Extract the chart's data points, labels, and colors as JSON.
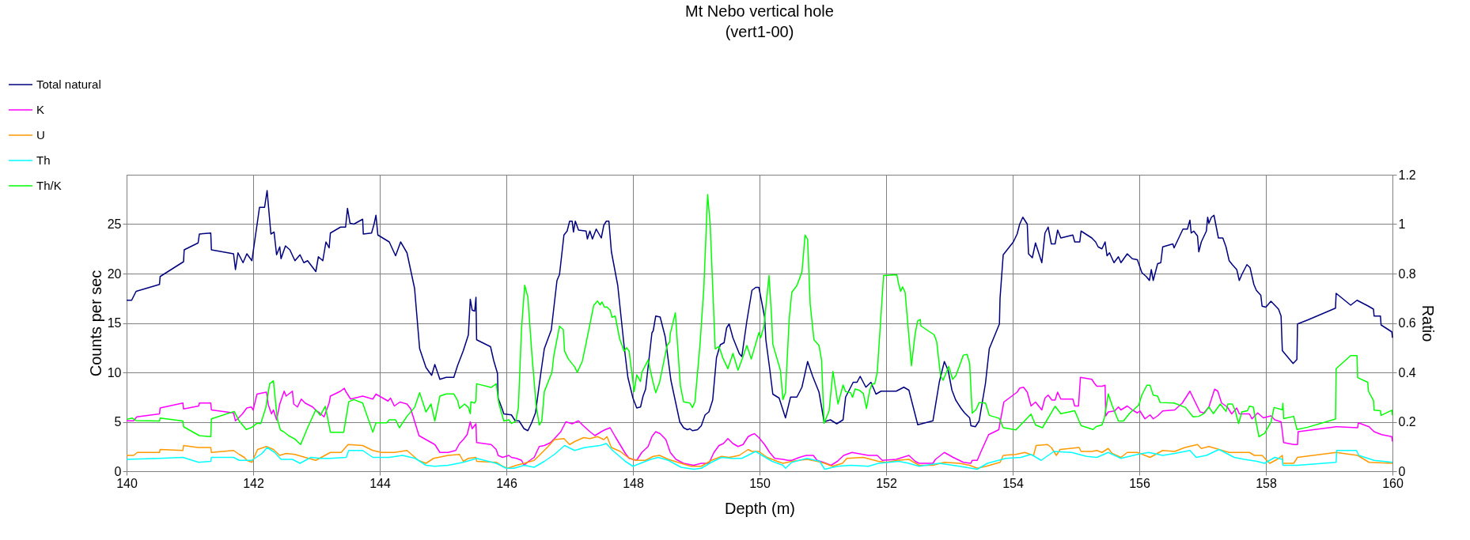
{
  "chart_data": {
    "type": "line",
    "title": "Mt Nebo vertical hole",
    "subtitle": "(vert1-00)",
    "xlabel": "Depth (m)",
    "ylabel": "Counts per sec",
    "y2label": "Ratio",
    "xlim": [
      140,
      160
    ],
    "xticks": [
      140,
      142,
      144,
      146,
      148,
      150,
      152,
      154,
      156,
      158,
      160
    ],
    "ylim": [
      0,
      30
    ],
    "yticks": [
      0,
      5,
      10,
      15,
      20,
      25
    ],
    "y2lim": [
      0,
      1.2
    ],
    "y2ticks": [
      0,
      0.2,
      0.4,
      0.6,
      0.8,
      1,
      1.2
    ],
    "grid": true,
    "legend": "top left",
    "marker": "none",
    "line_style": "solid",
    "series": [
      {
        "name": "Total natural",
        "color": "#000080",
        "x": [
          140,
          140.08,
          140.15,
          140.52,
          140.53,
          140.9,
          140.91,
          141.13,
          141.15,
          141.33,
          141.34,
          141.69,
          141.72,
          141.76,
          141.84,
          141.9,
          141.98,
          142.1,
          142.18,
          142.22,
          142.28,
          142.33,
          142.37,
          142.42,
          142.44,
          142.51,
          142.58,
          142.66,
          142.74,
          142.8,
          142.86,
          142.99,
          143.03,
          143.1,
          143.15,
          143.2,
          143.22,
          143.38,
          143.46,
          143.49,
          143.53,
          143.59,
          143.73,
          143.74,
          143.87,
          143.91,
          143.94,
          143.97,
          144.15,
          144.25,
          144.33,
          144.43,
          144.55,
          144.63,
          144.73,
          144.82,
          144.87,
          144.95,
          145.05,
          145.17,
          145.23,
          145.32,
          145.4,
          145.43,
          145.46,
          145.5,
          145.52,
          145.53,
          145.75,
          145.8,
          145.86,
          145.87,
          145.94,
          145.96,
          146.08,
          146.14,
          146.2,
          146.28,
          146.34,
          146.4,
          146.46,
          146.54,
          146.6,
          146.71,
          146.8,
          146.84,
          146.91,
          146.96,
          147,
          147.04,
          147.06,
          147.09,
          147.14,
          147.26,
          147.28,
          147.32,
          147.36,
          147.42,
          147.5,
          147.54,
          147.58,
          147.62,
          147.66,
          147.76,
          147.86,
          147.92,
          148,
          148.06,
          148.12,
          148.16,
          148.2,
          148.3,
          148.32,
          148.36,
          148.43,
          148.51,
          148.6,
          148.74,
          148.8,
          148.86,
          148.9,
          148.94,
          149.02,
          149.08,
          149.14,
          149.2,
          149.26,
          149.32,
          149.38,
          149.44,
          149.48,
          149.52,
          149.58,
          149.68,
          149.72,
          149.8,
          149.88,
          149.94,
          149.99,
          150.08,
          150.1,
          150.16,
          150.21,
          150.31,
          150.35,
          150.41,
          150.49,
          150.59,
          150.67,
          150.76,
          150.84,
          150.94,
          151.02,
          151.12,
          151.22,
          151.32,
          151.36,
          151.48,
          151.54,
          151.59,
          151.68,
          151.76,
          151.84,
          151.92,
          152.16,
          152.28,
          152.36,
          152.42,
          152.5,
          152.74,
          152.84,
          152.92,
          152.98,
          153.04,
          153.1,
          153.18,
          153.24,
          153.32,
          153.34,
          153.41,
          153.47,
          153.57,
          153.63,
          153.79,
          153.8,
          153.85,
          154.01,
          154.07,
          154.11,
          154.16,
          154.23,
          154.25,
          154.31,
          154.36,
          154.46,
          154.51,
          154.56,
          154.61,
          154.67,
          154.71,
          154.76,
          154.95,
          154.98,
          155.06,
          155.08,
          155.25,
          155.31,
          155.35,
          155.41,
          155.46,
          155.49,
          155.53,
          155.6,
          155.67,
          155.71,
          155.81,
          155.89,
          155.97,
          156.04,
          156.11,
          156.16,
          156.19,
          156.22,
          156.29,
          156.34,
          156.37,
          156.53,
          156.55,
          156.69,
          156.76,
          156.8,
          156.82,
          156.86,
          156.92,
          156.94,
          156.98,
          157.06,
          157.08,
          157.1,
          157.14,
          157.18,
          157.25,
          157.32,
          157.37,
          157.42,
          157.47,
          157.54,
          157.58,
          157.62,
          157.7,
          157.75,
          157.81,
          157.85,
          157.92,
          157.94,
          158,
          158.08,
          158.14,
          158.2,
          158.24,
          158.26,
          158.43,
          158.49,
          158.5,
          158.66,
          159.1,
          159.11,
          159.34,
          159.44,
          159.62,
          159.7,
          159.71,
          159.81,
          159.82,
          159.99,
          160
        ],
        "values": [
          17.3,
          17.3,
          18.2,
          18.9,
          19.7,
          21.2,
          22.4,
          23.1,
          24.0,
          24.1,
          22.4,
          22.0,
          20.4,
          22.1,
          21.1,
          22.0,
          21.3,
          26.7,
          26.7,
          28.4,
          24.0,
          24.2,
          21.9,
          22.7,
          21.5,
          22.8,
          22.4,
          21.3,
          21.9,
          21.1,
          21.3,
          20.2,
          21.7,
          21.3,
          23.2,
          22.6,
          24.1,
          24.7,
          24.7,
          26.6,
          25.1,
          25.0,
          25.5,
          24.0,
          24.1,
          25.0,
          25.9,
          23.9,
          23.2,
          21.8,
          23.2,
          22.1,
          18.5,
          12.4,
          10.5,
          9.7,
          10.8,
          9.3,
          9.5,
          9.5,
          10.7,
          12.2,
          13.8,
          17.4,
          16.3,
          16.2,
          17.6,
          13.3,
          12.6,
          11.2,
          9.9,
          7.4,
          6.2,
          5.8,
          5.7,
          5.1,
          5.1,
          4.3,
          4.1,
          4.9,
          5.9,
          9.7,
          12.4,
          14.3,
          19.3,
          19.9,
          23.9,
          24.3,
          25.3,
          25.3,
          24.2,
          25.3,
          24.4,
          24.3,
          23.5,
          24.3,
          23.5,
          24.5,
          23.6,
          24.9,
          25.3,
          25.3,
          22.2,
          18.8,
          12.7,
          9.5,
          7.4,
          6.4,
          6.5,
          7.6,
          8.3,
          14.0,
          14.2,
          15.7,
          15.6,
          13.6,
          9.2,
          5.0,
          4.4,
          4.2,
          4.3,
          4.1,
          4.2,
          4.6,
          5.7,
          6.0,
          7.2,
          11.5,
          12.8,
          13.0,
          14.5,
          14.9,
          13.5,
          11.9,
          11.6,
          15.2,
          18.3,
          18.6,
          18.6,
          15.6,
          13.3,
          10.4,
          7.8,
          7.4,
          6.6,
          5.4,
          7.5,
          7.5,
          8.5,
          11.1,
          9.6,
          8.0,
          5.0,
          5.2,
          4.8,
          5.2,
          7.5,
          9.0,
          9.0,
          9.6,
          8.5,
          9.0,
          7.8,
          8.1,
          8.1,
          8.5,
          8.2,
          6.7,
          4.7,
          5.1,
          9.0,
          11.1,
          10.2,
          8.2,
          7.2,
          6.4,
          5.9,
          5.4,
          4.6,
          4.5,
          5.1,
          8.9,
          12.4,
          14.9,
          17.5,
          21.9,
          23.2,
          24.0,
          25.0,
          25.7,
          25.0,
          22.0,
          21.6,
          23.1,
          21.1,
          24.1,
          24.7,
          23.0,
          23.0,
          24.4,
          23.6,
          23.9,
          23.2,
          23.2,
          24.3,
          23.6,
          23.2,
          22.7,
          22.5,
          23.2,
          21.8,
          22.1,
          21.1,
          21.7,
          21.1,
          22.0,
          21.5,
          21.4,
          20.1,
          19.7,
          19.3,
          20.4,
          19.3,
          21.0,
          21.1,
          22.7,
          23.0,
          22.6,
          24.5,
          24.5,
          25.4,
          24.1,
          24.3,
          23.8,
          22.2,
          23.2,
          24.3,
          25.7,
          25.1,
          25.7,
          25.9,
          23.6,
          23.6,
          22.7,
          21.3,
          20.9,
          20.4,
          19.3,
          19.9,
          20.9,
          20.6,
          18.9,
          18.3,
          17.8,
          16.7,
          16.6,
          17.2,
          16.8,
          16.4,
          15.7,
          12.2,
          10.9,
          11.3,
          14.9,
          15.3,
          16.5,
          18.0,
          16.8,
          17.3,
          16.7,
          16.4,
          15.7,
          15.7,
          14.8,
          14.1,
          13.5
        ]
      },
      {
        "name": "K",
        "color": "#ff00ff",
        "x": [
          140,
          140.11,
          140.16,
          140.52,
          140.53,
          140.89,
          140.9,
          141.14,
          141.15,
          141.33,
          141.34,
          141.69,
          141.72,
          141.77,
          141.83,
          141.9,
          141.97,
          142,
          142.06,
          142.13,
          142.21,
          142.24,
          142.29,
          142.32,
          142.37,
          142.42,
          142.49,
          142.52,
          142.62,
          142.64,
          142.7,
          142.76,
          142.82,
          142.94,
          143,
          143.05,
          143.12,
          143.2,
          143.22,
          143.38,
          143.44,
          143.46,
          143.54,
          143.73,
          143.89,
          143.94,
          144.13,
          144.17,
          144.23,
          144.32,
          144.43,
          144.49,
          144.62,
          144.73,
          144.87,
          144.95,
          145.08,
          145.2,
          145.26,
          145.32,
          145.38,
          145.4,
          145.43,
          145.46,
          145.52,
          145.53,
          145.76,
          145.84,
          145.87,
          145.94,
          146.04,
          146.08,
          146.16,
          146.24,
          146.28,
          146.35,
          146.44,
          146.52,
          146.6,
          146.7,
          146.76,
          146.86,
          146.94,
          147.04,
          147.14,
          147.2,
          147.32,
          147.4,
          147.5,
          147.56,
          147.64,
          147.72,
          147.88,
          147.94,
          148.06,
          148.14,
          148.24,
          148.3,
          148.36,
          148.43,
          148.52,
          148.59,
          148.68,
          148.8,
          148.96,
          149.08,
          149.2,
          149.28,
          149.36,
          149.43,
          149.5,
          149.58,
          149.66,
          149.74,
          149.82,
          149.88,
          149.92,
          149.99,
          150.08,
          150.16,
          150.24,
          150.37,
          150.45,
          150.51,
          150.63,
          150.74,
          150.85,
          150.91,
          151.01,
          151.13,
          151.23,
          151.33,
          151.46,
          151.72,
          151.86,
          151.94,
          152.16,
          152.36,
          152.46,
          152.52,
          152.74,
          152.78,
          152.92,
          153.06,
          153.22,
          153.34,
          153.36,
          153.44,
          153.5,
          153.62,
          153.78,
          153.86,
          154.07,
          154.11,
          154.17,
          154.23,
          154.29,
          154.36,
          154.46,
          154.51,
          154.56,
          154.62,
          154.67,
          154.71,
          154.76,
          154.95,
          154.98,
          155.04,
          155.07,
          155.25,
          155.29,
          155.33,
          155.41,
          155.46,
          155.47,
          155.51,
          155.61,
          155.67,
          155.71,
          155.81,
          155.89,
          155.97,
          156.01,
          156.09,
          156.17,
          156.22,
          156.29,
          156.37,
          156.56,
          156.68,
          156.8,
          156.86,
          156.96,
          157.02,
          157.1,
          157.19,
          157.24,
          157.3,
          157.39,
          157.46,
          157.54,
          157.58,
          157.74,
          157.78,
          157.87,
          157.96,
          158.08,
          158.14,
          158.24,
          158.27,
          158.28,
          158.44,
          158.5,
          158.51,
          159.11,
          159.13,
          159.45,
          159.46,
          159.63,
          159.71,
          159.83,
          159.99,
          160
        ],
        "values": [
          5.1,
          5.1,
          5.5,
          5.8,
          6.4,
          6.9,
          6.3,
          6.6,
          6.9,
          6.9,
          6.2,
          5.9,
          5.1,
          5.4,
          5.8,
          6.4,
          6.5,
          6.2,
          7.8,
          7.9,
          8.0,
          6.7,
          5.8,
          6.2,
          5.2,
          6.8,
          8.1,
          7.6,
          8.1,
          6.8,
          6.5,
          7.3,
          6.9,
          6.5,
          6.1,
          5.9,
          5.5,
          6.9,
          7.6,
          8.1,
          8.4,
          8.1,
          7.3,
          7.6,
          7.3,
          7.8,
          7.1,
          7.4,
          6.6,
          7.0,
          6.8,
          6.3,
          3.6,
          3.2,
          2.7,
          1.9,
          1.9,
          2.1,
          2.8,
          3.2,
          3.7,
          4.2,
          5.0,
          4.3,
          4.8,
          2.9,
          2.7,
          2.2,
          1.6,
          1.4,
          1.6,
          1.4,
          1.3,
          1.1,
          0.6,
          1.0,
          1.4,
          2.5,
          2.6,
          2.9,
          3.3,
          4.0,
          5.0,
          4.8,
          5.1,
          4.7,
          4.0,
          3.6,
          4.0,
          4.2,
          4.4,
          3.5,
          1.8,
          1.3,
          1.1,
          1.9,
          2.5,
          3.5,
          4.0,
          3.8,
          3.2,
          1.9,
          1.2,
          0.8,
          0.6,
          0.8,
          0.8,
          1.9,
          2.6,
          2.8,
          3.3,
          2.8,
          2.5,
          2.7,
          3.5,
          3.7,
          3.8,
          3.4,
          2.7,
          1.9,
          1.3,
          1.2,
          1.1,
          1.1,
          1.4,
          1.6,
          1.6,
          1.1,
          0.9,
          0.6,
          1.0,
          1.6,
          1.9,
          1.6,
          1.6,
          1.1,
          1.2,
          1.6,
          1.0,
          0.8,
          0.8,
          1.2,
          1.9,
          1.4,
          0.9,
          0.8,
          1.1,
          1.1,
          2.0,
          3.7,
          4.2,
          7.0,
          8.0,
          8.4,
          8.5,
          8.0,
          6.6,
          7.0,
          6.2,
          7.4,
          7.7,
          7.2,
          7.2,
          8.0,
          7.3,
          7.3,
          6.6,
          6.6,
          9.5,
          9.3,
          8.9,
          8.6,
          8.6,
          8.7,
          5.6,
          6.0,
          6.1,
          6.5,
          6.2,
          6.6,
          6.2,
          5.9,
          6.1,
          5.3,
          5.7,
          5.3,
          5.6,
          6.1,
          6.2,
          6.9,
          8.1,
          7.3,
          6.0,
          5.9,
          6.5,
          8.3,
          8.1,
          6.9,
          6.5,
          5.8,
          6.4,
          5.8,
          5.8,
          5.3,
          5.9,
          5.4,
          5.6,
          5.2,
          5.0,
          3.5,
          2.9,
          2.7,
          2.7,
          4.0,
          4.5,
          4.5,
          4.4,
          4.9,
          4.5,
          4.0,
          3.7,
          3.5,
          3.0
        ]
      },
      {
        "name": "U",
        "color": "#ff9900",
        "x": [
          140,
          140.11,
          140.17,
          140.52,
          140.53,
          140.89,
          140.9,
          141.13,
          141.33,
          141.34,
          141.69,
          141.78,
          141.86,
          141.9,
          141.98,
          142.07,
          142.21,
          142.32,
          142.42,
          142.52,
          142.66,
          142.82,
          142.99,
          143.22,
          143.39,
          143.5,
          143.73,
          143.89,
          144.03,
          144.23,
          144.43,
          144.61,
          144.73,
          144.85,
          145.08,
          145.26,
          145.32,
          145.4,
          145.52,
          145.53,
          145.84,
          145.94,
          146.02,
          146.16,
          146.28,
          146.44,
          146.52,
          146.66,
          146.76,
          146.91,
          147,
          147.08,
          147.22,
          147.32,
          147.44,
          147.54,
          147.59,
          147.66,
          147.8,
          147.92,
          148.04,
          148.2,
          148.32,
          148.42,
          148.56,
          148.76,
          148.92,
          149.08,
          149.24,
          149.4,
          149.52,
          149.68,
          149.82,
          149.88,
          149.99,
          150.12,
          150.28,
          150.37,
          150.51,
          150.75,
          150.91,
          151.03,
          151.15,
          151.31,
          151.38,
          151.64,
          151.76,
          151.88,
          152,
          152.18,
          152.36,
          152.52,
          152.74,
          152.92,
          153.16,
          153.32,
          153.44,
          153.58,
          153.8,
          153.85,
          154.05,
          154.19,
          154.33,
          154.37,
          154.55,
          154.61,
          154.69,
          154.75,
          155.05,
          155.08,
          155.25,
          155.33,
          155.41,
          155.51,
          155.57,
          155.71,
          155.81,
          155.97,
          156.17,
          156.37,
          156.56,
          156.72,
          156.92,
          156.98,
          157.1,
          157.26,
          157.42,
          157.58,
          157.74,
          157.82,
          157.94,
          158.06,
          158.18,
          158.26,
          158.27,
          158.44,
          158.5,
          159.11,
          159.45,
          159.63,
          160
        ],
        "values": [
          1.6,
          1.6,
          1.9,
          1.9,
          2.2,
          2.1,
          2.6,
          2.4,
          2.4,
          1.9,
          2.1,
          1.7,
          1.4,
          1.1,
          0.9,
          2.2,
          2.5,
          2.2,
          1.6,
          1.8,
          1.7,
          1.4,
          1.1,
          1.9,
          1.9,
          2.7,
          2.6,
          2.1,
          1.9,
          1.9,
          2.1,
          1.1,
          0.8,
          1.3,
          1.6,
          1.7,
          1.0,
          1.3,
          1.4,
          1.0,
          0.9,
          0.5,
          0.3,
          0.6,
          0.8,
          1.1,
          1.6,
          2.5,
          3.2,
          3.3,
          2.7,
          3.0,
          3.4,
          3.3,
          3.5,
          3.2,
          3.5,
          2.4,
          2.0,
          1.4,
          1.1,
          1.1,
          1.5,
          1.6,
          1.2,
          0.8,
          0.5,
          0.5,
          1.1,
          1.5,
          1.4,
          1.6,
          2.2,
          2.0,
          2.0,
          1.4,
          1.0,
          0.8,
          1.0,
          1.2,
          1.0,
          0.8,
          0.5,
          0.8,
          1.3,
          1.4,
          1.2,
          1.0,
          0.9,
          1.1,
          1.2,
          0.6,
          0.6,
          0.9,
          0.8,
          0.6,
          0.3,
          0.5,
          0.9,
          1.6,
          1.7,
          1.9,
          1.6,
          2.6,
          2.7,
          2.4,
          1.6,
          2.2,
          2.4,
          2.0,
          2.0,
          2.1,
          1.9,
          2.3,
          1.8,
          1.4,
          1.9,
          1.9,
          1.4,
          2.1,
          2.0,
          2.4,
          2.7,
          2.3,
          2.5,
          2.2,
          1.9,
          1.9,
          1.9,
          1.6,
          1.6,
          0.8,
          1.2,
          1.6,
          0.8,
          0.8,
          1.4,
          1.9,
          1.6,
          0.9,
          0.8
        ]
      },
      {
        "name": "Th",
        "color": "#00ffff",
        "x": [
          140,
          140.52,
          140.89,
          141.14,
          141.33,
          141.34,
          141.69,
          141.78,
          141.98,
          142.14,
          142.22,
          142.34,
          142.44,
          142.62,
          142.74,
          142.91,
          143.07,
          143.22,
          143.47,
          143.51,
          143.73,
          143.89,
          144.15,
          144.36,
          144.56,
          144.73,
          144.87,
          145.08,
          145.32,
          145.48,
          145.53,
          145.84,
          146,
          146.12,
          146.28,
          146.44,
          146.6,
          146.76,
          146.92,
          147.08,
          147.24,
          147.36,
          147.48,
          147.58,
          147.68,
          147.88,
          148,
          148.12,
          148.28,
          148.4,
          148.56,
          148.76,
          148.96,
          149.08,
          149.24,
          149.4,
          149.56,
          149.72,
          149.94,
          150.04,
          150.2,
          150.37,
          150.41,
          150.51,
          150.75,
          150.95,
          151.03,
          151.23,
          151.44,
          151.72,
          151.88,
          152.2,
          152.36,
          152.52,
          152.84,
          153.16,
          153.44,
          153.6,
          153.89,
          154.13,
          154.29,
          154.45,
          154.65,
          154.93,
          155.17,
          155.33,
          155.51,
          155.71,
          155.97,
          156.15,
          156.37,
          156.56,
          156.8,
          156.9,
          157.06,
          157.26,
          157.5,
          157.66,
          157.86,
          157.98,
          158.14,
          158.26,
          158.27,
          158.5,
          159.11,
          159.12,
          159.43,
          159.47,
          159.71,
          160
        ],
        "values": [
          1.2,
          1.3,
          1.4,
          0.9,
          1.0,
          1.4,
          1.4,
          1.1,
          1.1,
          1.8,
          2.4,
          1.9,
          1.2,
          1.2,
          0.8,
          1.4,
          1.3,
          1.3,
          1.4,
          2.1,
          2.1,
          1.4,
          1.4,
          1.6,
          1.3,
          0.6,
          0.5,
          0.6,
          0.9,
          1.2,
          1.3,
          0.8,
          0.3,
          0.3,
          0.6,
          0.4,
          1.0,
          1.7,
          2.6,
          2.1,
          2.4,
          2.5,
          2.6,
          2.8,
          2.1,
          1.0,
          0.5,
          0.8,
          1.2,
          1.4,
          1.1,
          0.4,
          0.2,
          0.3,
          0.9,
          1.4,
          1.3,
          1.3,
          2.0,
          1.6,
          1.0,
          0.6,
          0.3,
          0.9,
          1.3,
          1.0,
          0.2,
          0.5,
          0.6,
          0.5,
          0.8,
          1.0,
          0.8,
          0.5,
          0.8,
          0.5,
          0.2,
          0.8,
          1.3,
          1.4,
          1.7,
          1.1,
          2.0,
          1.9,
          1.5,
          1.4,
          1.9,
          1.3,
          1.7,
          1.9,
          1.6,
          1.8,
          2.1,
          1.4,
          1.6,
          2.2,
          1.4,
          1.2,
          1.0,
          0.8,
          1.4,
          1.2,
          0.6,
          0.6,
          0.9,
          2.1,
          2.1,
          1.6,
          1.1,
          0.9
        ]
      },
      {
        "name": "Th/K",
        "color": "#00ff00",
        "axis": "y2",
        "x": [
          140,
          140.09,
          140.15,
          140.52,
          140.53,
          140.89,
          140.9,
          141.15,
          141.33,
          141.34,
          141.7,
          141.78,
          141.89,
          141.98,
          142.06,
          142.12,
          142.2,
          142.26,
          142.32,
          142.38,
          142.43,
          142.48,
          142.56,
          142.66,
          142.75,
          142.86,
          142.99,
          143.06,
          143.14,
          143.22,
          143.43,
          143.51,
          143.59,
          143.73,
          143.89,
          143.94,
          144.11,
          144.15,
          144.25,
          144.31,
          144.43,
          144.55,
          144.63,
          144.73,
          144.81,
          144.87,
          144.95,
          145.05,
          145.17,
          145.23,
          145.26,
          145.34,
          145.4,
          145.43,
          145.44,
          145.5,
          145.52,
          145.53,
          145.76,
          145.84,
          145.88,
          145.96,
          146.04,
          146.08,
          146.15,
          146.19,
          146.24,
          146.29,
          146.34,
          146.4,
          146.47,
          146.52,
          146.56,
          146.6,
          146.72,
          146.75,
          146.84,
          146.9,
          146.92,
          146.98,
          147.08,
          147.12,
          147.2,
          147.26,
          147.38,
          147.44,
          147.48,
          147.51,
          147.55,
          147.59,
          147.64,
          147.67,
          147.72,
          147.79,
          147.86,
          147.9,
          147.94,
          148.02,
          148.06,
          148.12,
          148.14,
          148.24,
          148.31,
          148.36,
          148.42,
          148.54,
          148.58,
          148.59,
          148.67,
          148.75,
          148.8,
          148.9,
          148.94,
          148.98,
          149.06,
          149.12,
          149.18,
          149.22,
          149.3,
          149.36,
          149.42,
          149.5,
          149.58,
          149.66,
          149.72,
          149.8,
          149.87,
          149.99,
          150.02,
          150.07,
          150.15,
          150.19,
          150.21,
          150.33,
          150.37,
          150.41,
          150.47,
          150.51,
          150.59,
          150.67,
          150.72,
          150.76,
          150.8,
          150.86,
          150.94,
          150.98,
          151.02,
          151.1,
          151.16,
          151.24,
          151.32,
          151.36,
          151.44,
          151.47,
          151.51,
          151.58,
          151.64,
          151.69,
          151.74,
          151.78,
          151.82,
          151.86,
          151.96,
          152.17,
          152.2,
          152.23,
          152.26,
          152.3,
          152.4,
          152.46,
          152.5,
          152.54,
          152.55,
          152.76,
          152.8,
          152.86,
          152.9,
          152.99,
          153.05,
          153.1,
          153.16,
          153.22,
          153.28,
          153.32,
          153.36,
          153.42,
          153.47,
          153.57,
          153.63,
          153.79,
          153.85,
          154.05,
          154.29,
          154.36,
          154.47,
          154.67,
          154.76,
          154.98,
          155.08,
          155.27,
          155.32,
          155.41,
          155.45,
          155.51,
          155.57,
          155.67,
          155.75,
          155.85,
          155.99,
          156.04,
          156.12,
          156.17,
          156.22,
          156.29,
          156.33,
          156.55,
          156.73,
          156.85,
          156.94,
          157.02,
          157.1,
          157.17,
          157.28,
          157.37,
          157.4,
          157.47,
          157.51,
          157.57,
          157.62,
          157.71,
          157.74,
          157.8,
          157.89,
          157.98,
          158.08,
          158.13,
          158.26,
          158.27,
          158.28,
          158.44,
          158.49,
          158.66,
          159.1,
          159.11,
          159.34,
          159.44,
          159.45,
          159.61,
          159.62,
          159.7,
          159.71,
          159.81,
          159.82,
          159.99,
          160
        ],
        "values": [
          0.21,
          0.215,
          0.205,
          0.203,
          0.215,
          0.203,
          0.18,
          0.144,
          0.14,
          0.212,
          0.242,
          0.203,
          0.169,
          0.178,
          0.194,
          0.193,
          0.258,
          0.354,
          0.366,
          0.213,
          0.167,
          0.16,
          0.144,
          0.13,
          0.108,
          0.176,
          0.249,
          0.226,
          0.263,
          0.158,
          0.158,
          0.281,
          0.29,
          0.276,
          0.158,
          0.196,
          0.196,
          0.208,
          0.208,
          0.176,
          0.222,
          0.258,
          0.318,
          0.24,
          0.272,
          0.203,
          0.304,
          0.313,
          0.313,
          0.286,
          0.254,
          0.272,
          0.258,
          0.233,
          0.281,
          0.276,
          0.286,
          0.354,
          0.339,
          0.354,
          0.276,
          0.203,
          0.208,
          0.193,
          0.203,
          0.258,
          0.578,
          0.753,
          0.705,
          0.486,
          0.267,
          0.187,
          0.203,
          0.322,
          0.4,
          0.468,
          0.587,
          0.573,
          0.486,
          0.454,
          0.422,
          0.4,
          0.445,
          0.518,
          0.671,
          0.689,
          0.673,
          0.685,
          0.664,
          0.665,
          0.652,
          0.623,
          0.628,
          0.536,
          0.486,
          0.5,
          0.486,
          0.322,
          0.39,
          0.363,
          0.4,
          0.45,
          0.368,
          0.318,
          0.359,
          0.509,
          0.523,
          0.557,
          0.641,
          0.345,
          0.281,
          0.276,
          0.258,
          0.281,
          0.514,
          0.742,
          1.12,
          1.0,
          0.495,
          0.505,
          0.459,
          0.415,
          0.477,
          0.409,
          0.45,
          0.509,
          0.454,
          0.561,
          0.541,
          0.587,
          0.792,
          0.628,
          0.514,
          0.409,
          0.29,
          0.318,
          0.619,
          0.724,
          0.751,
          0.806,
          0.956,
          0.938,
          0.678,
          0.532,
          0.509,
          0.45,
          0.194,
          0.245,
          0.404,
          0.272,
          0.349,
          0.322,
          0.318,
          0.299,
          0.333,
          0.327,
          0.315,
          0.254,
          0.327,
          0.354,
          0.354,
          0.4,
          0.792,
          0.795,
          0.755,
          0.728,
          0.746,
          0.724,
          0.427,
          0.559,
          0.609,
          0.614,
          0.588,
          0.552,
          0.523,
          0.386,
          0.368,
          0.424,
          0.372,
          0.386,
          0.427,
          0.47,
          0.473,
          0.436,
          0.235,
          0.249,
          0.278,
          0.276,
          0.226,
          0.214,
          0.176,
          0.167,
          0.231,
          0.187,
          0.176,
          0.263,
          0.233,
          0.245,
          0.185,
          0.169,
          0.181,
          0.187,
          0.217,
          0.313,
          0.267,
          0.203,
          0.203,
          0.235,
          0.267,
          0.308,
          0.348,
          0.348,
          0.308,
          0.304,
          0.278,
          0.276,
          0.258,
          0.22,
          0.222,
          0.233,
          0.26,
          0.233,
          0.272,
          0.242,
          0.272,
          0.272,
          0.249,
          0.193,
          0.24,
          0.245,
          0.263,
          0.26,
          0.14,
          0.153,
          0.199,
          0.258,
          0.249,
          0.275,
          0.213,
          0.222,
          0.169,
          0.178,
          0.211,
          0.415,
          0.468,
          0.468,
          0.379,
          0.36,
          0.324,
          0.286,
          0.247,
          0.245,
          0.226,
          0.247,
          0.226
        ]
      }
    ]
  }
}
